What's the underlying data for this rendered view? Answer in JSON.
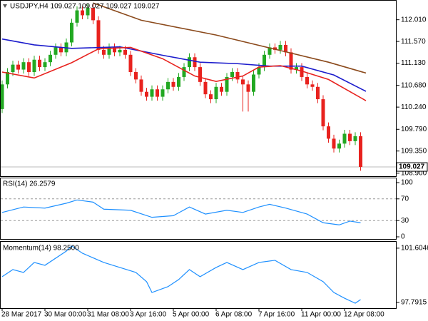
{
  "chart_data": [
    {
      "type": "candlestick",
      "title": "USDJPY,H4 109.027 109.027 109.027 109.027",
      "categories": [
        "28 Mar 2017",
        null,
        null,
        null,
        null,
        null,
        null,
        null,
        "30 Mar 00:00",
        null,
        null,
        null,
        null,
        null,
        null,
        null,
        "31 Mar 08:00",
        null,
        null,
        null,
        null,
        null,
        null,
        null,
        "3 Apr 16:00",
        null,
        null,
        null,
        null,
        null,
        null,
        null,
        "5 Apr 00:00",
        null,
        null,
        null,
        null,
        null,
        null,
        null,
        "6 Apr 08:00",
        null,
        null,
        null,
        null,
        null,
        null,
        null,
        "7 Apr 16:00",
        null,
        null,
        null,
        null,
        null,
        null,
        null,
        "11 Apr 00:00",
        null,
        null,
        null,
        null,
        null,
        null,
        null,
        "12 Apr 08:00",
        null,
        null,
        null
      ],
      "open": [
        110.2,
        110.7,
        110.95,
        111.1,
        111.0,
        111.15,
        110.95,
        111.2,
        111.05,
        111.15,
        111.3,
        111.45,
        111.35,
        111.55,
        111.95,
        112.2,
        112.1,
        112.25,
        112.0,
        111.4,
        111.3,
        111.45,
        111.35,
        111.4,
        111.3,
        110.95,
        110.8,
        110.55,
        110.45,
        110.6,
        110.45,
        110.6,
        110.75,
        110.65,
        110.85,
        111.05,
        111.25,
        111.05,
        110.75,
        110.5,
        110.4,
        110.65,
        110.55,
        110.85,
        110.95,
        110.8,
        110.7,
        110.55,
        110.9,
        111.05,
        111.3,
        111.45,
        111.4,
        111.5,
        111.35,
        111.0,
        111.05,
        110.85,
        110.7,
        110.65,
        110.4,
        109.85,
        109.6,
        109.4,
        109.5,
        109.7,
        109.55,
        109.65
      ],
      "high": [
        110.78,
        111.03,
        111.18,
        111.18,
        111.23,
        111.23,
        111.28,
        111.28,
        111.23,
        111.38,
        111.53,
        111.53,
        111.63,
        112.03,
        112.28,
        112.28,
        112.33,
        112.33,
        112.08,
        111.48,
        111.53,
        111.53,
        111.48,
        111.48,
        111.38,
        111.03,
        110.88,
        110.63,
        110.68,
        110.68,
        110.68,
        110.83,
        110.83,
        110.93,
        111.13,
        111.33,
        111.33,
        111.13,
        110.83,
        110.58,
        110.73,
        110.73,
        110.93,
        111.03,
        111.03,
        110.88,
        110.78,
        110.98,
        111.13,
        111.38,
        111.53,
        111.53,
        111.58,
        111.58,
        111.43,
        111.13,
        111.13,
        110.93,
        110.78,
        110.73,
        110.48,
        109.93,
        109.68,
        109.58,
        109.78,
        109.78,
        109.73,
        109.73
      ],
      "low": [
        110.12,
        110.62,
        110.87,
        110.92,
        110.92,
        110.87,
        110.87,
        110.97,
        110.97,
        111.07,
        111.22,
        111.27,
        111.27,
        111.47,
        111.87,
        112.02,
        112.02,
        111.92,
        111.32,
        111.22,
        111.22,
        111.27,
        111.27,
        111.22,
        110.87,
        110.72,
        110.47,
        110.37,
        110.37,
        110.37,
        110.37,
        110.52,
        110.57,
        110.57,
        110.77,
        110.97,
        110.97,
        110.67,
        110.42,
        110.32,
        110.32,
        110.47,
        110.47,
        110.77,
        110.72,
        110.15,
        110.15,
        110.47,
        110.82,
        110.97,
        111.22,
        111.32,
        111.32,
        111.27,
        110.92,
        110.92,
        110.77,
        110.62,
        110.57,
        110.32,
        109.77,
        109.52,
        109.32,
        109.32,
        109.42,
        109.47,
        109.47,
        108.95
      ],
      "close": [
        110.7,
        110.95,
        111.1,
        111.0,
        111.15,
        110.95,
        111.2,
        111.05,
        111.15,
        111.3,
        111.45,
        111.35,
        111.55,
        111.95,
        112.2,
        112.1,
        112.25,
        112.0,
        111.4,
        111.3,
        111.45,
        111.35,
        111.4,
        111.3,
        110.95,
        110.8,
        110.55,
        110.45,
        110.6,
        110.45,
        110.6,
        110.75,
        110.65,
        110.85,
        111.05,
        111.25,
        111.05,
        110.75,
        110.5,
        110.4,
        110.65,
        110.55,
        110.85,
        110.95,
        110.8,
        110.7,
        110.55,
        110.9,
        111.05,
        111.3,
        111.45,
        111.4,
        111.5,
        111.35,
        111.0,
        111.05,
        110.85,
        110.7,
        110.65,
        110.4,
        109.85,
        109.6,
        109.4,
        109.5,
        109.7,
        109.55,
        109.65,
        109.027
      ],
      "up_color": "#22a822",
      "down_color": "#e8221e",
      "series": [
        {
          "color": "#8b4a1c",
          "x": [
            17,
            26,
            40,
            53,
            61,
            68
          ],
          "values": [
            112.35,
            112.0,
            111.7,
            111.36,
            111.15,
            110.93
          ]
        },
        {
          "color": "#1c1ccc",
          "x": [
            0,
            6,
            13,
            22,
            30,
            37,
            44,
            50,
            56,
            62,
            68
          ],
          "values": [
            111.62,
            111.5,
            111.43,
            111.46,
            111.29,
            111.15,
            111.12,
            111.07,
            111.07,
            110.89,
            110.56
          ]
        },
        {
          "color": "#e8221e",
          "x": [
            0,
            6,
            13,
            18,
            24,
            30,
            36,
            40,
            45,
            48,
            52,
            56,
            61,
            68
          ],
          "values": [
            110.95,
            110.83,
            111.14,
            111.42,
            111.45,
            111.22,
            110.87,
            110.76,
            110.87,
            111.05,
            111.08,
            110.97,
            110.8,
            110.37
          ]
        }
      ],
      "last_price": 109.027,
      "ylim": [
        108.84,
        112.41
      ],
      "yticks": [
        {
          "value": 112.01,
          "label": "112.010"
        },
        {
          "value": 111.57,
          "label": "111.570"
        },
        {
          "value": 111.13,
          "label": "111.130"
        },
        {
          "value": 110.68,
          "label": "110.680"
        },
        {
          "value": 110.24,
          "label": "110.240"
        },
        {
          "value": 109.79,
          "label": "109.790"
        },
        {
          "value": 109.35,
          "label": "109.350"
        },
        {
          "value": 108.9,
          "label": "108.900"
        }
      ]
    },
    {
      "type": "line",
      "title": "RSI(14) 26.2579",
      "series": [
        {
          "color": "#1e90ff",
          "x": [
            0,
            4,
            8,
            12,
            14,
            17,
            19,
            24,
            28,
            32,
            35,
            38,
            42,
            45,
            48,
            50,
            53,
            57,
            60,
            63,
            65,
            67
          ],
          "values": [
            45,
            55,
            53,
            62,
            68,
            64,
            51,
            49,
            36,
            39,
            55,
            42,
            49,
            45,
            55,
            60,
            53,
            42,
            26,
            22,
            29,
            26
          ]
        }
      ],
      "ylim": [
        0,
        100
      ],
      "yticks": [
        100,
        70,
        30,
        0
      ]
    },
    {
      "type": "line",
      "title": "Momentum(14) 98.2500",
      "series": [
        {
          "color": "#1e90ff",
          "x": [
            0,
            2,
            4,
            6,
            8,
            12,
            13,
            15,
            19,
            22,
            25,
            27,
            28,
            31,
            33,
            35,
            37,
            40,
            42,
            45,
            48,
            51,
            54,
            57,
            60,
            62,
            64,
            66,
            67
          ],
          "values": [
            99.6,
            100.1,
            99.9,
            100.6,
            100.4,
            101.4,
            101.76,
            101.25,
            100.6,
            100.25,
            99.9,
            99.25,
            98.49,
            98.9,
            99.4,
            100.1,
            99.6,
            100.25,
            100.6,
            100.1,
            100.6,
            100.75,
            100.1,
            99.9,
            99.25,
            98.49,
            98.09,
            97.74,
            97.99
          ]
        }
      ],
      "ylim": [
        97.39,
        101.9
      ],
      "yticks": [
        101.6046,
        97.7915
      ]
    }
  ]
}
